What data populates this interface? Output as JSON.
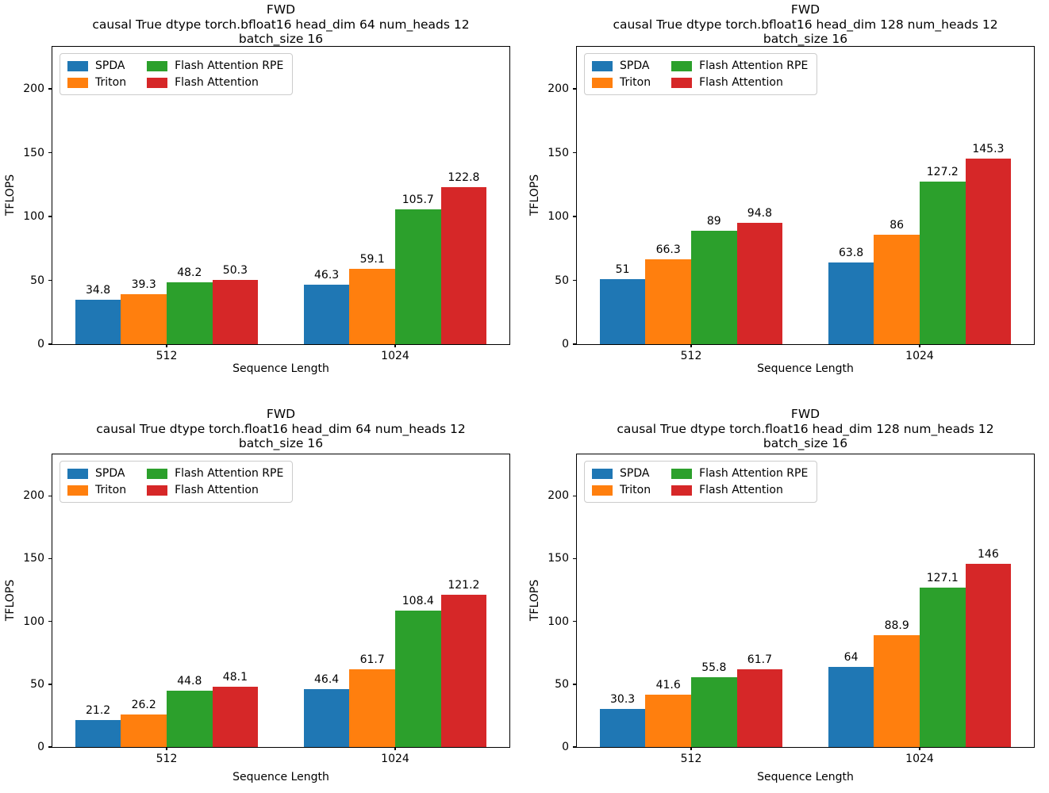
{
  "figure": {
    "background": "#ffffff",
    "text_color": "#000000",
    "spine_color": "#000000"
  },
  "palette": {
    "blue": "#1f77b4",
    "orange": "#ff7f0e",
    "green": "#2ca02c",
    "red": "#d62728"
  },
  "legend": {
    "position": "upper left",
    "entries": [
      "SPDA",
      "Triton",
      "Flash Attention RPE",
      "Flash Attention"
    ]
  },
  "chart_data": [
    {
      "type": "bar",
      "title": [
        "FWD",
        "causal True dtype torch.bfloat16 head_dim 64 num_heads 12",
        "batch_size 16"
      ],
      "xlabel": "Sequence Length",
      "ylabel": "TFLOPS",
      "categories": [
        "512",
        "1024"
      ],
      "series": [
        {
          "name": "SPDA",
          "color": "#1f77b4",
          "values": [
            34.8,
            46.3
          ]
        },
        {
          "name": "Triton",
          "color": "#ff7f0e",
          "values": [
            39.3,
            59.1
          ]
        },
        {
          "name": "Flash Attention RPE",
          "color": "#2ca02c",
          "values": [
            48.2,
            105.7
          ]
        },
        {
          "name": "Flash Attention",
          "color": "#d62728",
          "values": [
            50.3,
            122.8
          ]
        }
      ],
      "ylim": [
        0,
        233
      ],
      "yticks": [
        0,
        50,
        100,
        150,
        200
      ],
      "grid": false,
      "legend_position": "upper left"
    },
    {
      "type": "bar",
      "title": [
        "FWD",
        "causal True dtype torch.bfloat16 head_dim 128 num_heads 12",
        "batch_size 16"
      ],
      "xlabel": "Sequence Length",
      "ylabel": "TFLOPS",
      "categories": [
        "512",
        "1024"
      ],
      "series": [
        {
          "name": "SPDA",
          "color": "#1f77b4",
          "values": [
            51,
            63.8
          ]
        },
        {
          "name": "Triton",
          "color": "#ff7f0e",
          "values": [
            66.3,
            86
          ]
        },
        {
          "name": "Flash Attention RPE",
          "color": "#2ca02c",
          "values": [
            89,
            127.2
          ]
        },
        {
          "name": "Flash Attention",
          "color": "#d62728",
          "values": [
            94.8,
            145.3
          ]
        }
      ],
      "ylim": [
        0,
        233
      ],
      "yticks": [
        0,
        50,
        100,
        150,
        200
      ],
      "grid": false,
      "legend_position": "upper left"
    },
    {
      "type": "bar",
      "title": [
        "FWD",
        "causal True dtype torch.float16 head_dim 64 num_heads 12",
        "batch_size 16"
      ],
      "xlabel": "Sequence Length",
      "ylabel": "TFLOPS",
      "categories": [
        "512",
        "1024"
      ],
      "series": [
        {
          "name": "SPDA",
          "color": "#1f77b4",
          "values": [
            21.2,
            46.4
          ]
        },
        {
          "name": "Triton",
          "color": "#ff7f0e",
          "values": [
            26.2,
            61.7
          ]
        },
        {
          "name": "Flash Attention RPE",
          "color": "#2ca02c",
          "values": [
            44.8,
            108.4
          ]
        },
        {
          "name": "Flash Attention",
          "color": "#d62728",
          "values": [
            48.1,
            121.2
          ]
        }
      ],
      "ylim": [
        0,
        233
      ],
      "yticks": [
        0,
        50,
        100,
        150,
        200
      ],
      "grid": false,
      "legend_position": "upper left"
    },
    {
      "type": "bar",
      "title": [
        "FWD",
        "causal True dtype torch.float16 head_dim 128 num_heads 12",
        "batch_size 16"
      ],
      "xlabel": "Sequence Length",
      "ylabel": "TFLOPS",
      "categories": [
        "512",
        "1024"
      ],
      "series": [
        {
          "name": "SPDA",
          "color": "#1f77b4",
          "values": [
            30.3,
            64
          ]
        },
        {
          "name": "Triton",
          "color": "#ff7f0e",
          "values": [
            41.6,
            88.9
          ]
        },
        {
          "name": "Flash Attention RPE",
          "color": "#2ca02c",
          "values": [
            55.8,
            127.1
          ]
        },
        {
          "name": "Flash Attention",
          "color": "#d62728",
          "values": [
            61.7,
            146
          ]
        }
      ],
      "ylim": [
        0,
        233
      ],
      "yticks": [
        0,
        50,
        100,
        150,
        200
      ],
      "grid": false,
      "legend_position": "upper left"
    }
  ]
}
